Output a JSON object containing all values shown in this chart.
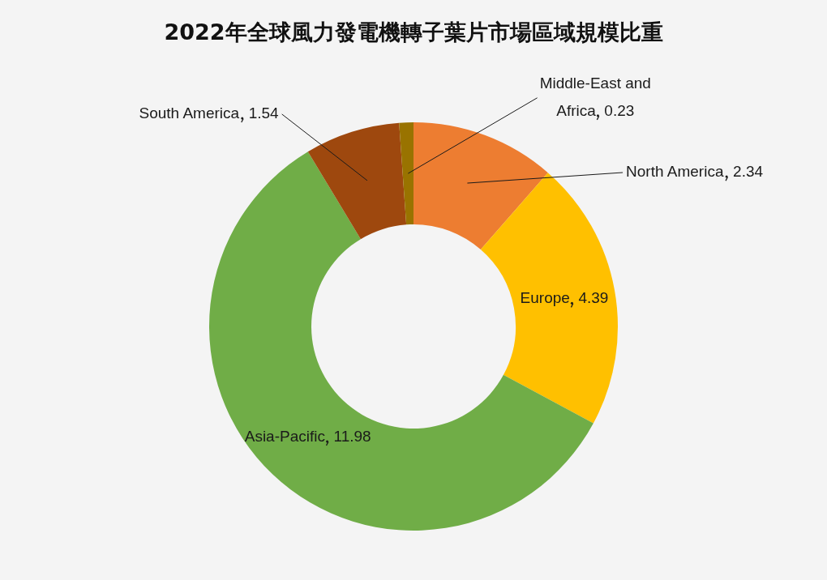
{
  "chart_data": {
    "type": "donut",
    "title": "2022年全球風力發電機轉子葉片市場區域規模比重",
    "categories": [
      "North America",
      "Europe",
      "Asia-Pacific",
      "South America",
      "Middle-East and Africa"
    ],
    "values": [
      2.34,
      4.39,
      11.98,
      1.54,
      0.23
    ],
    "colors": [
      "#ed7d31",
      "#ffc000",
      "#70ad47",
      "#9e480e",
      "#997300"
    ],
    "data_labels": true,
    "legend": false
  }
}
